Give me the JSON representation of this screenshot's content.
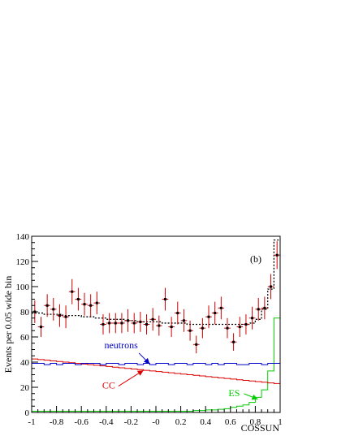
{
  "chart_data": {
    "type": "line",
    "panel_label": "(b)",
    "xlabel": "COSSUN",
    "ylabel": "Events per 0.05 wide bin",
    "xlim": [
      -1,
      1
    ],
    "ylim": [
      0,
      140
    ],
    "x_ticks": [
      "-1",
      "-0.8",
      "-0.6",
      "-0.4",
      "-0.2",
      "-0",
      "0.2",
      "0.4",
      "0.6",
      "0.8",
      "1"
    ],
    "y_ticks": [
      "0",
      "20",
      "40",
      "60",
      "80",
      "100",
      "120",
      "140"
    ],
    "bin_edges": [
      -1.0,
      -0.95,
      -0.9,
      -0.85,
      -0.8,
      -0.75,
      -0.7,
      -0.65,
      -0.6,
      -0.55,
      -0.5,
      -0.45,
      -0.4,
      -0.35,
      -0.3,
      -0.25,
      -0.2,
      -0.15,
      -0.1,
      -0.05,
      0.0,
      0.05,
      0.1,
      0.15,
      0.2,
      0.25,
      0.3,
      0.35,
      0.4,
      0.45,
      0.5,
      0.55,
      0.6,
      0.65,
      0.7,
      0.75,
      0.8,
      0.85,
      0.9,
      0.95,
      1.0
    ],
    "series": [
      {
        "name": "data",
        "style": "points-with-errors",
        "color": "#cc0000",
        "marker_color": "#000000",
        "x": [
          -0.975,
          -0.925,
          -0.875,
          -0.825,
          -0.775,
          -0.725,
          -0.675,
          -0.625,
          -0.575,
          -0.525,
          -0.475,
          -0.425,
          -0.375,
          -0.325,
          -0.275,
          -0.225,
          -0.175,
          -0.125,
          -0.075,
          -0.025,
          0.025,
          0.075,
          0.125,
          0.175,
          0.225,
          0.275,
          0.325,
          0.375,
          0.425,
          0.475,
          0.525,
          0.575,
          0.625,
          0.675,
          0.725,
          0.775,
          0.825,
          0.875,
          0.925,
          0.975
        ],
        "y": [
          80,
          68,
          85,
          82,
          77,
          76,
          96,
          90,
          86,
          85,
          87,
          70,
          71,
          71,
          71,
          73,
          71,
          72,
          70,
          74,
          69,
          90,
          68,
          79,
          73,
          65,
          54,
          67,
          76,
          79,
          83,
          67,
          56,
          68,
          70,
          75,
          82,
          83,
          100,
          125
        ],
        "yerr": [
          9,
          8,
          9,
          9,
          9,
          9,
          10,
          9,
          9,
          9,
          9,
          8,
          8,
          8,
          8,
          9,
          8,
          8,
          8,
          9,
          8,
          9,
          8,
          9,
          9,
          8,
          7,
          8,
          9,
          9,
          9,
          8,
          7,
          8,
          8,
          9,
          9,
          9,
          10,
          11
        ]
      },
      {
        "name": "total",
        "style": "dotted-step",
        "color": "#000000",
        "y": [
          79,
          79,
          78,
          78,
          78,
          77,
          77,
          77,
          76,
          76,
          75,
          75,
          74,
          74,
          74,
          73,
          73,
          72,
          72,
          72,
          72,
          71,
          71,
          71,
          71,
          70,
          70,
          70,
          70,
          70,
          70,
          70,
          70,
          70,
          70,
          71,
          74,
          82,
          98,
          137
        ]
      },
      {
        "name": "neutrons",
        "style": "step",
        "color": "#0000cc",
        "y": [
          39,
          39,
          38,
          39,
          38,
          39,
          39,
          38,
          39,
          39,
          39,
          38,
          39,
          39,
          38,
          39,
          39,
          38,
          39,
          38,
          39,
          39,
          38,
          39,
          39,
          38,
          39,
          39,
          38,
          39,
          38,
          39,
          39,
          38,
          38,
          39,
          39,
          38,
          39,
          39
        ]
      },
      {
        "name": "CC",
        "style": "step",
        "color": "#dd0000",
        "y": [
          42.5,
          42,
          41.5,
          41,
          40.5,
          40,
          39.5,
          39,
          38.5,
          38,
          37.5,
          37,
          36.5,
          36,
          35.5,
          35,
          34.5,
          34,
          33.5,
          33,
          32.5,
          32,
          31.5,
          31,
          30.5,
          30,
          29.5,
          29,
          28.5,
          28,
          27.5,
          27,
          26.5,
          26,
          25.5,
          25,
          24.5,
          24,
          23.5,
          23
        ]
      },
      {
        "name": "ES",
        "style": "step",
        "color": "#00cc00",
        "y": [
          1,
          1,
          1,
          1,
          1,
          1,
          1,
          1,
          1,
          1,
          1,
          1,
          1,
          1,
          1,
          1,
          1,
          1,
          1,
          1,
          1,
          1,
          1,
          1,
          1,
          1,
          1.5,
          1.5,
          2,
          2,
          2.5,
          3,
          4,
          5,
          6,
          8,
          12,
          18,
          33,
          75
        ]
      }
    ],
    "annotations": [
      {
        "text": "neutrons",
        "color": "#0000cc",
        "arrow_to": [
          -0.05,
          38.5
        ],
        "text_at": [
          -0.28,
          51
        ]
      },
      {
        "text": "CC",
        "color": "#dd0000",
        "arrow_to": [
          -0.1,
          33.5
        ],
        "text_at": [
          -0.38,
          19
        ]
      },
      {
        "text": "ES",
        "color": "#00cc00",
        "arrow_to": [
          0.82,
          10.5
        ],
        "text_at": [
          0.63,
          13
        ]
      }
    ]
  }
}
